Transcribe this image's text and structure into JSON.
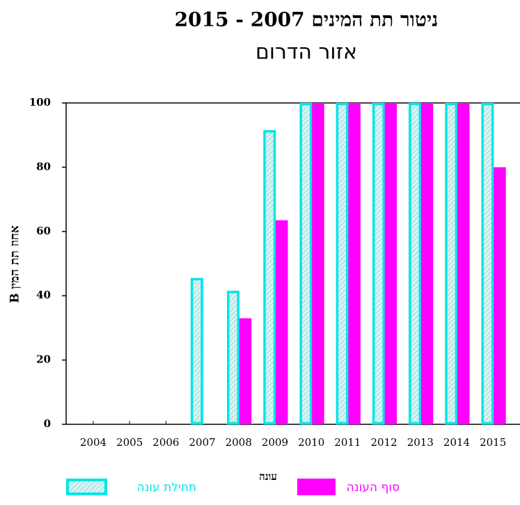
{
  "chart_data": {
    "type": "bar",
    "title": "ניטור תת המינים 2007 - 2015",
    "subtitle": "אזור הדרום",
    "x_label": "עונה",
    "y_label": "אחוז תת המין B",
    "categories": [
      "2004",
      "2005",
      "2006",
      "2007",
      "2008",
      "2009",
      "2010",
      "2011",
      "2012",
      "2013",
      "2014",
      "2015"
    ],
    "series": [
      {
        "name": "תחילת עונה",
        "color": "#00e6e6",
        "hatch": true,
        "values": [
          0,
          0,
          0,
          45.5,
          41.5,
          91.5,
          100,
          100,
          100,
          100,
          100,
          100
        ]
      },
      {
        "name": "סוף העונה",
        "color": "#ff00ff",
        "hatch": false,
        "values": [
          0,
          0,
          0,
          0,
          33,
          63.5,
          100,
          100,
          100,
          100,
          100,
          80
        ]
      }
    ],
    "ylim": [
      0,
      100
    ],
    "yticks": [
      0,
      20,
      40,
      60,
      80,
      100
    ],
    "grid": false
  }
}
